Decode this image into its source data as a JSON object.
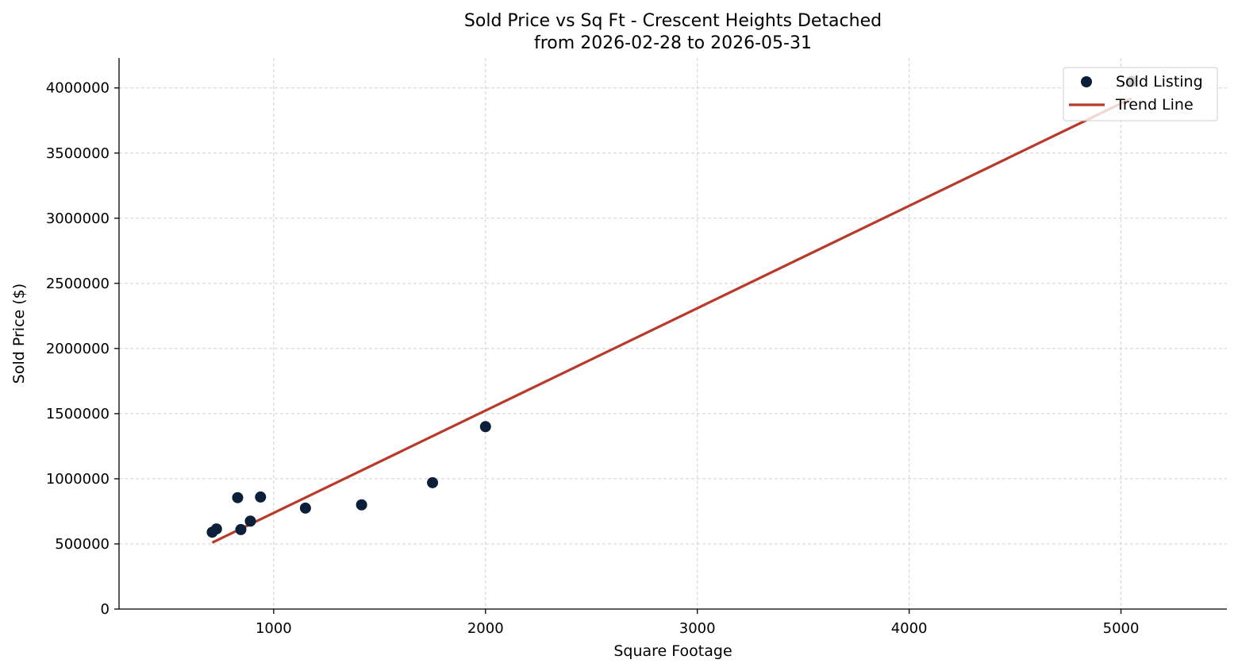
{
  "chart_data": {
    "type": "scatter",
    "title_line1": "Sold Price vs Sq Ft - Crescent Heights Detached",
    "title_line2": "from 2026-02-28 to 2026-05-31",
    "xlabel": "Square Footage",
    "ylabel": "Sold Price ($)",
    "xlim": [
      270,
      5500
    ],
    "ylim": [
      0,
      4230000
    ],
    "x_ticks": [
      1000,
      2000,
      3000,
      4000,
      5000
    ],
    "y_ticks": [
      0,
      500000,
      1000000,
      1500000,
      2000000,
      2500000,
      3000000,
      3500000,
      4000000
    ],
    "x_tick_labels": [
      "1000",
      "2000",
      "3000",
      "4000",
      "5000"
    ],
    "y_tick_labels": [
      "0",
      "500000",
      "1000000",
      "1500000",
      "2000000",
      "2500000",
      "3000000",
      "3500000",
      "4000000"
    ],
    "grid": true,
    "legend_position": "top-right",
    "series": [
      {
        "name": "Sold Listing",
        "kind": "scatter",
        "color": "#0b1f3a",
        "points": [
          {
            "x": 710,
            "y": 590000
          },
          {
            "x": 730,
            "y": 615000
          },
          {
            "x": 830,
            "y": 855000
          },
          {
            "x": 845,
            "y": 610000
          },
          {
            "x": 890,
            "y": 675000
          },
          {
            "x": 938,
            "y": 860000
          },
          {
            "x": 1150,
            "y": 775000
          },
          {
            "x": 1415,
            "y": 800000
          },
          {
            "x": 1750,
            "y": 970000
          },
          {
            "x": 2000,
            "y": 1400000
          },
          {
            "x": 5050,
            "y": 4050000
          }
        ]
      },
      {
        "name": "Trend Line",
        "kind": "line",
        "color": "#b83a2b",
        "points": [
          {
            "x": 710,
            "y": 510000
          },
          {
            "x": 5050,
            "y": 3920000
          }
        ]
      }
    ]
  }
}
